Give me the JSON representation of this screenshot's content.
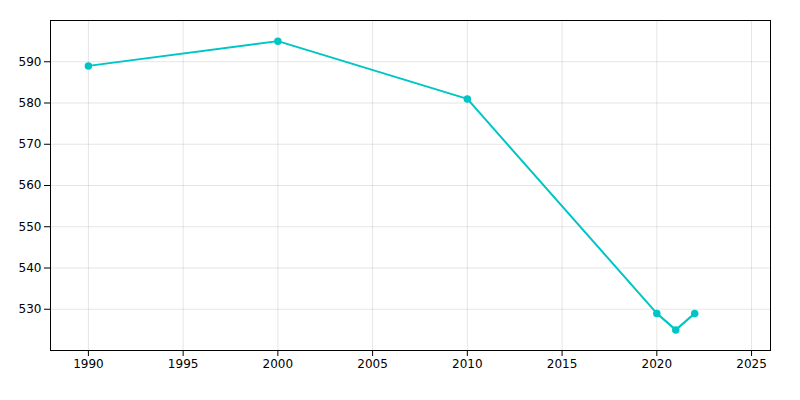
{
  "chart_data": {
    "type": "line",
    "x": [
      1990,
      2000,
      2010,
      2020,
      2021,
      2022
    ],
    "values": [
      589,
      595,
      581,
      529,
      525,
      529
    ],
    "color": "#00C5C5",
    "marker": "circle",
    "xlim": [
      1988,
      2026
    ],
    "ylim": [
      520,
      600
    ],
    "xticks": [
      1990,
      1995,
      2000,
      2005,
      2010,
      2015,
      2020,
      2025
    ],
    "yticks": [
      530,
      540,
      550,
      560,
      570,
      580,
      590
    ],
    "grid": true
  }
}
